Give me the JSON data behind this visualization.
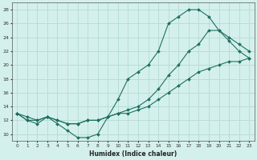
{
  "xlabel": "Humidex (Indice chaleur)",
  "bg_color": "#d4f0ec",
  "grid_color": "#b8ddd8",
  "line_color": "#1e7060",
  "line1_x": [
    0,
    1,
    2,
    3,
    4,
    5,
    6,
    7,
    8,
    9,
    10,
    11,
    12,
    13,
    14,
    15,
    16,
    17,
    18,
    19,
    20,
    21,
    22,
    23
  ],
  "line1_y": [
    13,
    12,
    11.5,
    12.5,
    11.5,
    10.5,
    9.5,
    9.5,
    10,
    12.5,
    15,
    18,
    19,
    20,
    22,
    26,
    27,
    28,
    28,
    27,
    25,
    23.5,
    22,
    21
  ],
  "line2_x": [
    0,
    1,
    2,
    3,
    4,
    5,
    6,
    7,
    8,
    9,
    10,
    11,
    12,
    13,
    14,
    15,
    16,
    17,
    18,
    19,
    20,
    21,
    22,
    23
  ],
  "line2_y": [
    13,
    12,
    12,
    12.5,
    12,
    11.5,
    11.5,
    12,
    12,
    12.5,
    13,
    13.5,
    14,
    15,
    16.5,
    18.5,
    20,
    22,
    23,
    25,
    25,
    24,
    23,
    22
  ],
  "line3_x": [
    0,
    1,
    2,
    3,
    4,
    5,
    6,
    7,
    8,
    9,
    10,
    11,
    12,
    13,
    14,
    15,
    16,
    17,
    18,
    19,
    20,
    21,
    22,
    23
  ],
  "line3_y": [
    13,
    12.5,
    12,
    12.5,
    12,
    11.5,
    11.5,
    12,
    12,
    12.5,
    13,
    13,
    13.5,
    14,
    15,
    16,
    17,
    18,
    19,
    19.5,
    20,
    20.5,
    20.5,
    21
  ],
  "xlim": [
    -0.5,
    23.5
  ],
  "ylim": [
    9,
    29
  ],
  "yticks": [
    10,
    12,
    14,
    16,
    18,
    20,
    22,
    24,
    26,
    28
  ],
  "xticks": [
    0,
    1,
    2,
    3,
    4,
    5,
    6,
    7,
    8,
    9,
    10,
    11,
    12,
    13,
    14,
    15,
    16,
    17,
    18,
    19,
    20,
    21,
    22,
    23
  ]
}
